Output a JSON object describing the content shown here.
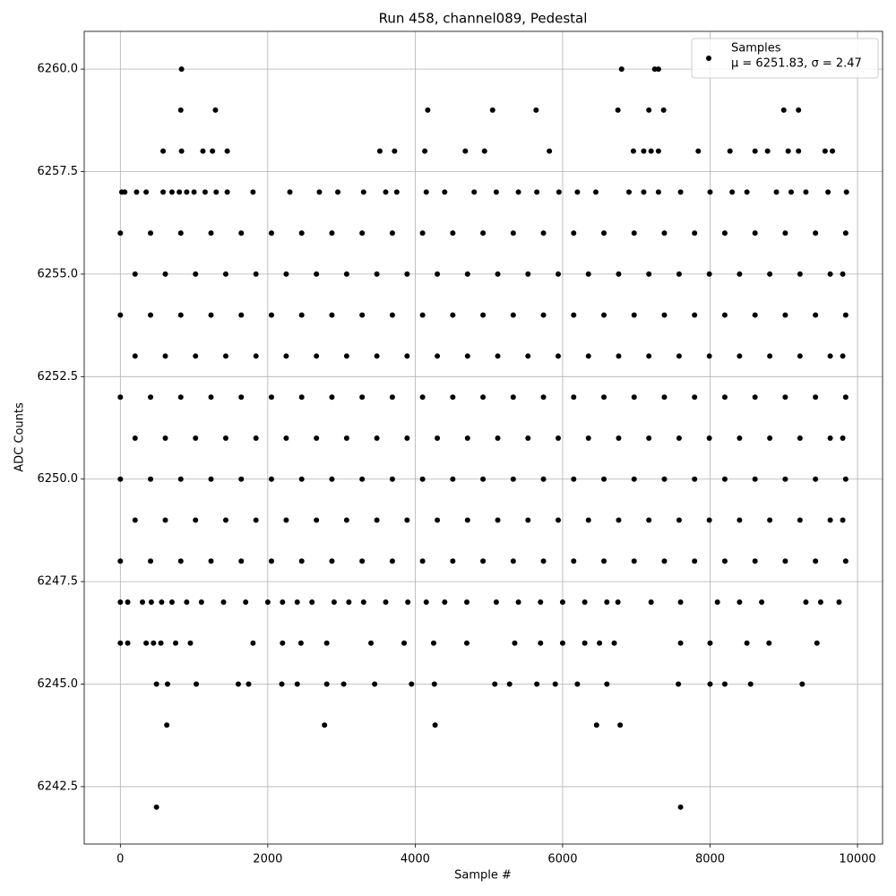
{
  "chart_data": {
    "type": "scatter",
    "title": "Run 458, channel089, Pedestal",
    "x_label": "Sample #",
    "y_label": "ADC Counts",
    "legend": {
      "name": "Samples",
      "stats": "μ = 6251.83, σ = 2.47",
      "position": "upper right"
    },
    "color": "#000000",
    "grid": true,
    "xlim": [
      -490,
      10340
    ],
    "ylim": [
      6241.1,
      6260.92
    ],
    "xticks": [
      0,
      2000,
      4000,
      6000,
      8000,
      10000
    ],
    "yticks": [
      {
        "value": 6242.5,
        "label": "6242.5"
      },
      {
        "value": 6245,
        "label": "6245.0"
      },
      {
        "value": 6247.5,
        "label": "6247.5"
      },
      {
        "value": 6250,
        "label": "6250.0"
      },
      {
        "value": 6252.5,
        "label": "6252.5"
      },
      {
        "value": 6255,
        "label": "6255.0"
      },
      {
        "value": 6257.5,
        "label": "6257.5"
      },
      {
        "value": 6260,
        "label": "6260.0"
      }
    ],
    "x": [
      830,
      6800,
      7250,
      7300,
      820,
      1290,
      4170,
      5050,
      5640,
      6750,
      7170,
      7370,
      9000,
      9200,
      580,
      830,
      1120,
      1250,
      1450,
      3520,
      3720,
      4130,
      4680,
      4940,
      5820,
      6960,
      7100,
      7200,
      7300,
      7840,
      8270,
      8610,
      8780,
      9060,
      9200,
      9560,
      9660,
      20,
      60,
      220,
      350,
      580,
      700,
      800,
      900,
      1000,
      1150,
      1300,
      1450,
      1800,
      2300,
      2700,
      2950,
      3300,
      3600,
      3750,
      4150,
      4400,
      4800,
      5100,
      5400,
      5650,
      5950,
      6200,
      6450,
      6900,
      7100,
      7300,
      7600,
      8000,
      8300,
      8500,
      8900,
      9100,
      9300,
      9600,
      9850,
      0,
      410,
      820,
      1230,
      1640,
      2050,
      2460,
      2870,
      3280,
      3690,
      4100,
      4510,
      4920,
      5330,
      5740,
      6150,
      6560,
      6970,
      7380,
      7790,
      8200,
      8610,
      9020,
      9430,
      9840,
      200,
      610,
      1020,
      1430,
      1840,
      2250,
      2660,
      3070,
      3480,
      3890,
      4300,
      4710,
      5120,
      5530,
      5940,
      6350,
      6760,
      7170,
      7580,
      7990,
      8400,
      8810,
      9220,
      9630,
      9800,
      0,
      410,
      820,
      1230,
      1640,
      2050,
      2460,
      2870,
      3280,
      3690,
      4100,
      4510,
      4920,
      5330,
      5740,
      6150,
      6560,
      6970,
      7380,
      7790,
      8200,
      8610,
      9020,
      9430,
      9840,
      200,
      610,
      1020,
      1430,
      1840,
      2250,
      2660,
      3070,
      3480,
      3890,
      4300,
      4710,
      5120,
      5530,
      5940,
      6350,
      6760,
      7170,
      7580,
      7990,
      8400,
      8810,
      9220,
      9630,
      9800,
      0,
      410,
      820,
      1230,
      1640,
      2050,
      2460,
      2870,
      3280,
      3690,
      4100,
      4510,
      4920,
      5330,
      5740,
      6150,
      6560,
      6970,
      7380,
      7790,
      8200,
      8610,
      9020,
      9430,
      9840,
      200,
      610,
      1020,
      1430,
      1840,
      2250,
      2660,
      3070,
      3480,
      3890,
      4300,
      4710,
      5120,
      5530,
      5940,
      6350,
      6760,
      7170,
      7580,
      7990,
      8400,
      8810,
      9220,
      9630,
      9800,
      0,
      410,
      820,
      1230,
      1640,
      2050,
      2460,
      2870,
      3280,
      3690,
      4100,
      4510,
      4920,
      5330,
      5740,
      6150,
      6560,
      6970,
      7380,
      7790,
      8200,
      8610,
      9020,
      9430,
      9840,
      200,
      610,
      1020,
      1430,
      1840,
      2250,
      2660,
      3070,
      3480,
      3890,
      4300,
      4710,
      5120,
      5530,
      5940,
      6350,
      6760,
      7170,
      7580,
      7990,
      8400,
      8810,
      9220,
      9630,
      9800,
      0,
      410,
      820,
      1230,
      1640,
      2050,
      2460,
      2870,
      3280,
      3690,
      4100,
      4510,
      4920,
      5330,
      5740,
      6150,
      6560,
      6970,
      7380,
      7790,
      8200,
      8610,
      9020,
      9430,
      9840,
      0,
      100,
      300,
      420,
      560,
      700,
      900,
      1100,
      1400,
      1700,
      2000,
      2200,
      2400,
      2600,
      2900,
      3100,
      3300,
      3600,
      3900,
      4150,
      4400,
      4700,
      5100,
      5400,
      5700,
      6000,
      6300,
      6600,
      6750,
      7200,
      7600,
      8100,
      8400,
      8700,
      9300,
      9500,
      9750,
      0,
      100,
      350,
      450,
      550,
      750,
      950,
      1800,
      2200,
      2450,
      2800,
      3400,
      3850,
      4250,
      4700,
      5350,
      5700,
      6000,
      6300,
      6500,
      6700,
      7600,
      8000,
      8500,
      8800,
      9450,
      490,
      640,
      1030,
      1600,
      1740,
      2190,
      2400,
      2800,
      3030,
      3450,
      3950,
      4260,
      5080,
      5280,
      5650,
      5900,
      6200,
      6600,
      7570,
      8000,
      8200,
      8550,
      9250,
      630,
      2770,
      4270,
      6460,
      6780,
      490,
      7600
    ],
    "values": [
      6260,
      6260,
      6260,
      6260,
      6259,
      6259,
      6259,
      6259,
      6259,
      6259,
      6259,
      6259,
      6259,
      6259,
      6258,
      6258,
      6258,
      6258,
      6258,
      6258,
      6258,
      6258,
      6258,
      6258,
      6258,
      6258,
      6258,
      6258,
      6258,
      6258,
      6258,
      6258,
      6258,
      6258,
      6258,
      6258,
      6258,
      6257,
      6257,
      6257,
      6257,
      6257,
      6257,
      6257,
      6257,
      6257,
      6257,
      6257,
      6257,
      6257,
      6257,
      6257,
      6257,
      6257,
      6257,
      6257,
      6257,
      6257,
      6257,
      6257,
      6257,
      6257,
      6257,
      6257,
      6257,
      6257,
      6257,
      6257,
      6257,
      6257,
      6257,
      6257,
      6257,
      6257,
      6257,
      6257,
      6257,
      6256,
      6256,
      6256,
      6256,
      6256,
      6256,
      6256,
      6256,
      6256,
      6256,
      6256,
      6256,
      6256,
      6256,
      6256,
      6256,
      6256,
      6256,
      6256,
      6256,
      6256,
      6256,
      6256,
      6256,
      6256,
      6255,
      6255,
      6255,
      6255,
      6255,
      6255,
      6255,
      6255,
      6255,
      6255,
      6255,
      6255,
      6255,
      6255,
      6255,
      6255,
      6255,
      6255,
      6255,
      6255,
      6255,
      6255,
      6255,
      6255,
      6255,
      6254,
      6254,
      6254,
      6254,
      6254,
      6254,
      6254,
      6254,
      6254,
      6254,
      6254,
      6254,
      6254,
      6254,
      6254,
      6254,
      6254,
      6254,
      6254,
      6254,
      6254,
      6254,
      6254,
      6254,
      6254,
      6253,
      6253,
      6253,
      6253,
      6253,
      6253,
      6253,
      6253,
      6253,
      6253,
      6253,
      6253,
      6253,
      6253,
      6253,
      6253,
      6253,
      6253,
      6253,
      6253,
      6253,
      6253,
      6253,
      6253,
      6253,
      6252,
      6252,
      6252,
      6252,
      6252,
      6252,
      6252,
      6252,
      6252,
      6252,
      6252,
      6252,
      6252,
      6252,
      6252,
      6252,
      6252,
      6252,
      6252,
      6252,
      6252,
      6252,
      6252,
      6252,
      6252,
      6251,
      6251,
      6251,
      6251,
      6251,
      6251,
      6251,
      6251,
      6251,
      6251,
      6251,
      6251,
      6251,
      6251,
      6251,
      6251,
      6251,
      6251,
      6251,
      6251,
      6251,
      6251,
      6251,
      6251,
      6251,
      6250,
      6250,
      6250,
      6250,
      6250,
      6250,
      6250,
      6250,
      6250,
      6250,
      6250,
      6250,
      6250,
      6250,
      6250,
      6250,
      6250,
      6250,
      6250,
      6250,
      6250,
      6250,
      6250,
      6250,
      6250,
      6249,
      6249,
      6249,
      6249,
      6249,
      6249,
      6249,
      6249,
      6249,
      6249,
      6249,
      6249,
      6249,
      6249,
      6249,
      6249,
      6249,
      6249,
      6249,
      6249,
      6249,
      6249,
      6249,
      6249,
      6249,
      6248,
      6248,
      6248,
      6248,
      6248,
      6248,
      6248,
      6248,
      6248,
      6248,
      6248,
      6248,
      6248,
      6248,
      6248,
      6248,
      6248,
      6248,
      6248,
      6248,
      6248,
      6248,
      6248,
      6248,
      6248,
      6247,
      6247,
      6247,
      6247,
      6247,
      6247,
      6247,
      6247,
      6247,
      6247,
      6247,
      6247,
      6247,
      6247,
      6247,
      6247,
      6247,
      6247,
      6247,
      6247,
      6247,
      6247,
      6247,
      6247,
      6247,
      6247,
      6247,
      6247,
      6247,
      6247,
      6247,
      6247,
      6247,
      6247,
      6247,
      6247,
      6247,
      6246,
      6246,
      6246,
      6246,
      6246,
      6246,
      6246,
      6246,
      6246,
      6246,
      6246,
      6246,
      6246,
      6246,
      6246,
      6246,
      6246,
      6246,
      6246,
      6246,
      6246,
      6246,
      6246,
      6246,
      6246,
      6246,
      6245,
      6245,
      6245,
      6245,
      6245,
      6245,
      6245,
      6245,
      6245,
      6245,
      6245,
      6245,
      6245,
      6245,
      6245,
      6245,
      6245,
      6245,
      6245,
      6245,
      6245,
      6245,
      6245,
      6244,
      6244,
      6244,
      6244,
      6244,
      6242,
      6242
    ]
  }
}
